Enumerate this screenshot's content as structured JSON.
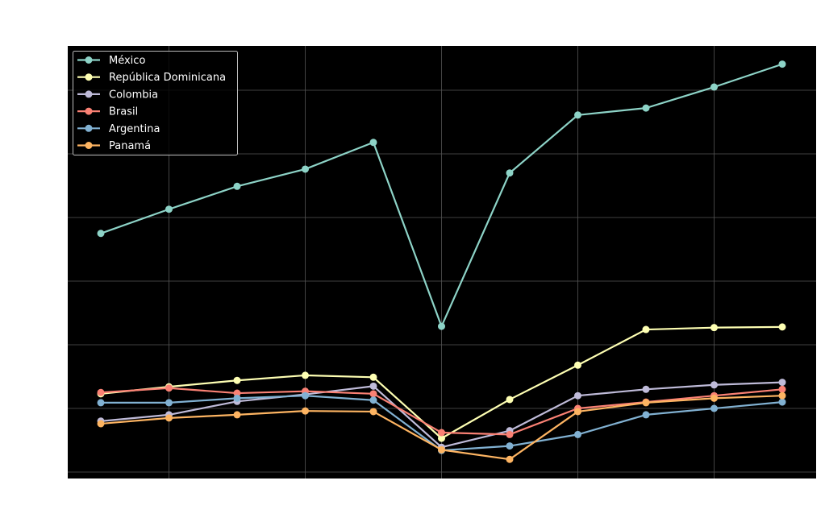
{
  "chart_data": {
    "type": "line",
    "title": "",
    "xlabel": "",
    "ylabel": "",
    "x": [
      0,
      1,
      2,
      3,
      4,
      5,
      6,
      7,
      8,
      9,
      10
    ],
    "x_tick_labels_visible": false,
    "y_tick_labels_visible": false,
    "ylim": [
      -0.1,
      6.7
    ],
    "y_unit_note": "values in gridline units (tick labels not visible)",
    "grid": true,
    "legend_position": "upper left",
    "background": "#000000",
    "series": [
      {
        "name": "México",
        "color": "#8dd3c7",
        "values": [
          3.75,
          4.13,
          4.49,
          4.76,
          5.18,
          2.29,
          4.7,
          5.61,
          5.72,
          6.05,
          6.41
        ]
      },
      {
        "name": "República Dominicana",
        "color": "#feffb3",
        "values": [
          1.23,
          1.34,
          1.44,
          1.52,
          1.49,
          0.53,
          1.14,
          1.68,
          2.24,
          2.27,
          2.28
        ]
      },
      {
        "name": "Colombia",
        "color": "#bfbbd9",
        "values": [
          0.8,
          0.9,
          1.11,
          1.22,
          1.35,
          0.39,
          0.65,
          1.2,
          1.3,
          1.37,
          1.41
        ]
      },
      {
        "name": "Brasil",
        "color": "#fa8174",
        "values": [
          1.25,
          1.32,
          1.24,
          1.27,
          1.23,
          0.62,
          0.59,
          1.0,
          1.1,
          1.2,
          1.3
        ]
      },
      {
        "name": "Argentina",
        "color": "#81b1d2",
        "values": [
          1.09,
          1.09,
          1.16,
          1.2,
          1.13,
          0.34,
          0.41,
          0.59,
          0.9,
          1.0,
          1.1
        ]
      },
      {
        "name": "Panamá",
        "color": "#fdb462",
        "values": [
          0.76,
          0.85,
          0.9,
          0.96,
          0.95,
          0.35,
          0.2,
          0.95,
          1.09,
          1.16,
          1.2
        ]
      }
    ]
  },
  "legend": {
    "items": [
      {
        "label": "México"
      },
      {
        "label": "República Dominicana"
      },
      {
        "label": "Colombia"
      },
      {
        "label": "Brasil"
      },
      {
        "label": "Argentina"
      },
      {
        "label": "Panamá"
      }
    ]
  }
}
